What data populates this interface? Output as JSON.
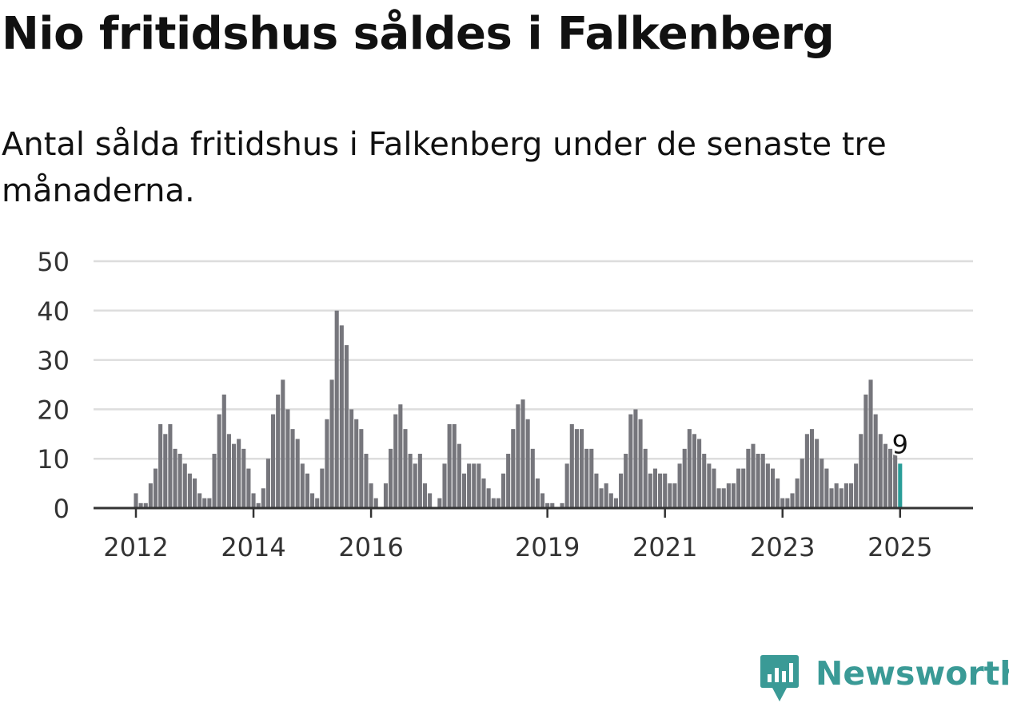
{
  "title": "Nio fritidshus såldes i Falkenberg",
  "subtitle": "Antal sålda fritidshus i Falkenberg under de senaste tre månaderna.",
  "brand": {
    "name": "Newsworthy"
  },
  "colors": {
    "bar": "#76767c",
    "highlight": "#2a9d98",
    "grid": "#dddddd",
    "axis": "#333333",
    "text": "#333333"
  },
  "chart_data": {
    "type": "bar",
    "ylim": [
      0,
      50
    ],
    "yticks": [
      0,
      10,
      20,
      30,
      40,
      50
    ],
    "xticks": [
      "2012",
      "2014",
      "2016",
      "2019",
      "2021",
      "2023",
      "2025"
    ],
    "xtick_month_index": [
      0,
      24,
      48,
      84,
      108,
      132,
      156
    ],
    "first_month": "2012-01",
    "last_month": "2025-01",
    "values": [
      3,
      1,
      1,
      5,
      8,
      17,
      15,
      17,
      12,
      11,
      9,
      7,
      6,
      3,
      2,
      2,
      11,
      19,
      23,
      15,
      13,
      14,
      12,
      8,
      3,
      1,
      4,
      10,
      19,
      23,
      26,
      20,
      16,
      14,
      9,
      7,
      3,
      2,
      8,
      18,
      26,
      40,
      37,
      33,
      20,
      18,
      16,
      11,
      5,
      2,
      0,
      5,
      12,
      19,
      21,
      16,
      11,
      9,
      11,
      5,
      3,
      0,
      2,
      9,
      17,
      17,
      13,
      7,
      9,
      9,
      9,
      6,
      4,
      2,
      2,
      7,
      11,
      16,
      21,
      22,
      18,
      12,
      6,
      3,
      1,
      1,
      0,
      1,
      9,
      17,
      16,
      16,
      12,
      12,
      7,
      4,
      5,
      3,
      2,
      7,
      11,
      19,
      20,
      18,
      12,
      7,
      8,
      7,
      7,
      5,
      5,
      9,
      12,
      16,
      15,
      14,
      11,
      9,
      8,
      4,
      4,
      5,
      5,
      8,
      8,
      12,
      13,
      11,
      11,
      9,
      8,
      6,
      2,
      2,
      3,
      6,
      10,
      15,
      16,
      14,
      10,
      8,
      4,
      5,
      4,
      5,
      5,
      9,
      15,
      23,
      26,
      19,
      15,
      13,
      12,
      11,
      9
    ],
    "highlight_index": 156,
    "annotation": {
      "label": "9"
    }
  }
}
